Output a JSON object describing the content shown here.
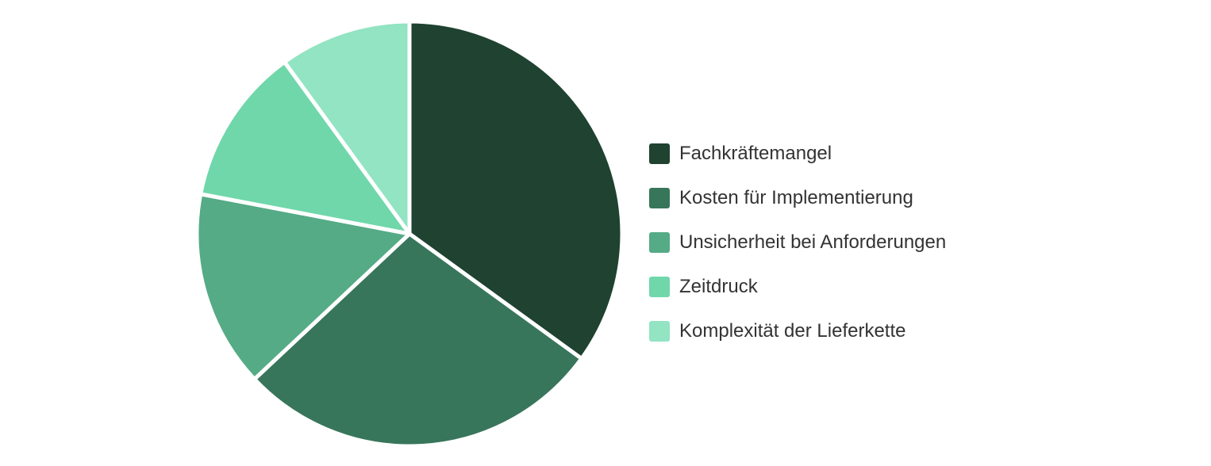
{
  "chart_data": {
    "type": "pie",
    "title": "",
    "start_angle_deg": 0,
    "direction": "clockwise",
    "legend_position": "right",
    "categories": [
      "Fachkräftemangel",
      "Kosten für Implementierung",
      "Unsicherheit bei Anforderungen",
      "Zeitdruck",
      "Komplexität der Lieferkette"
    ],
    "values": [
      35,
      28,
      15,
      12,
      10
    ],
    "colors": [
      "#1f4231",
      "#38765c",
      "#55ab86",
      "#70d7ab",
      "#92e4c3"
    ]
  }
}
